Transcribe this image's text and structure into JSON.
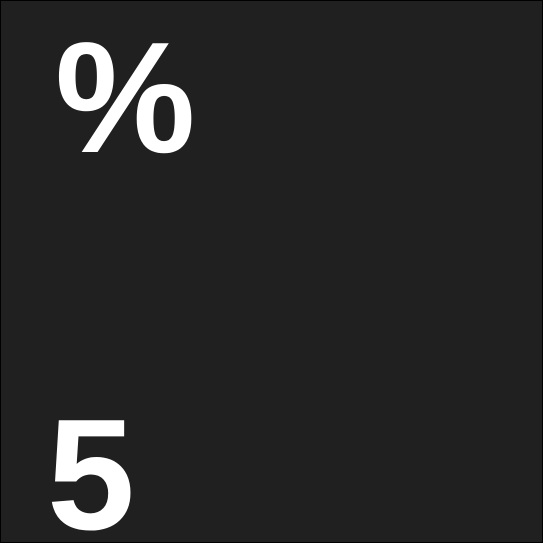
{
  "colors": {
    "background": "#202020",
    "text": "#ffffff"
  },
  "tile": {
    "symbol": "%",
    "digit": "5"
  }
}
